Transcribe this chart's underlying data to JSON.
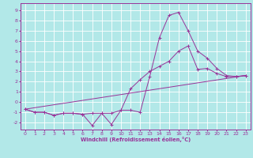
{
  "bg_color": "#b2e8e8",
  "grid_color": "#ffffff",
  "line_color": "#993399",
  "xlabel": "Windchill (Refroidissement éolien,°C)",
  "xlim": [
    -0.5,
    23.5
  ],
  "ylim": [
    -2.7,
    9.7
  ],
  "xticks": [
    0,
    1,
    2,
    3,
    4,
    5,
    6,
    7,
    8,
    9,
    10,
    11,
    12,
    13,
    14,
    15,
    16,
    17,
    18,
    19,
    20,
    21,
    22,
    23
  ],
  "yticks": [
    -2,
    -1,
    0,
    1,
    2,
    3,
    4,
    5,
    6,
    7,
    8,
    9
  ],
  "line1_x": [
    0,
    1,
    2,
    3,
    4,
    5,
    6,
    7,
    8,
    9,
    10,
    11,
    12,
    13,
    14,
    15,
    16,
    17,
    18,
    19,
    20,
    21,
    22,
    23
  ],
  "line1_y": [
    -0.7,
    -1.0,
    -1.0,
    -1.3,
    -1.1,
    -1.1,
    -1.2,
    -2.3,
    -1.1,
    -2.2,
    -0.8,
    -0.8,
    -1.0,
    2.5,
    6.3,
    8.5,
    8.8,
    7.0,
    5.0,
    4.3,
    3.3,
    2.6,
    2.5,
    2.6
  ],
  "line2_x": [
    0,
    1,
    2,
    3,
    4,
    5,
    6,
    7,
    8,
    9,
    10,
    11,
    12,
    13,
    14,
    15,
    16,
    17,
    18,
    19,
    20,
    21,
    22,
    23
  ],
  "line2_y": [
    -0.7,
    -1.0,
    -1.0,
    -1.3,
    -1.1,
    -1.1,
    -1.2,
    -1.1,
    -1.1,
    -1.1,
    -0.8,
    1.3,
    2.2,
    3.0,
    3.5,
    4.0,
    5.0,
    5.5,
    3.2,
    3.3,
    2.8,
    2.5,
    2.5,
    2.6
  ],
  "line3_x": [
    0,
    23
  ],
  "line3_y": [
    -0.7,
    2.6
  ]
}
